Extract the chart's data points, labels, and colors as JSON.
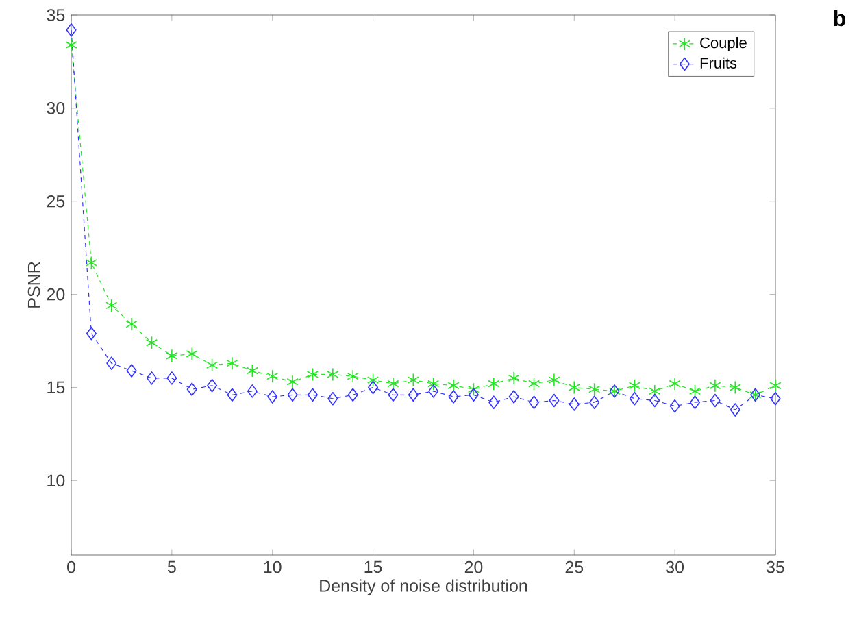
{
  "chart_data": {
    "type": "line",
    "xlabel": "Density of noise distribution",
    "ylabel": "PSNR",
    "x": [
      0,
      1,
      2,
      3,
      4,
      5,
      6,
      7,
      8,
      9,
      10,
      11,
      12,
      13,
      14,
      15,
      16,
      17,
      18,
      19,
      20,
      21,
      22,
      23,
      24,
      25,
      26,
      27,
      28,
      29,
      30,
      31,
      32,
      33,
      34,
      35
    ],
    "series": [
      {
        "name": "Couple",
        "color": "#22e622",
        "marker": "cross",
        "values": [
          33.4,
          21.7,
          19.4,
          18.4,
          17.4,
          16.7,
          16.8,
          16.2,
          16.3,
          15.9,
          15.6,
          15.3,
          15.7,
          15.7,
          15.6,
          15.4,
          15.2,
          15.4,
          15.2,
          15.1,
          14.9,
          15.2,
          15.5,
          15.2,
          15.4,
          15.0,
          14.9,
          14.8,
          15.1,
          14.8,
          15.2,
          14.8,
          15.1,
          15.0,
          14.6,
          15.1
        ]
      },
      {
        "name": "Fruits",
        "color": "#3333ff",
        "marker": "diamond",
        "values": [
          34.2,
          17.9,
          16.3,
          15.9,
          15.5,
          15.5,
          14.9,
          15.1,
          14.6,
          14.8,
          14.5,
          14.6,
          14.6,
          14.4,
          14.6,
          15.0,
          14.6,
          14.6,
          14.8,
          14.5,
          14.6,
          14.2,
          14.5,
          14.2,
          14.3,
          14.1,
          14.2,
          14.8,
          14.4,
          14.3,
          14.0,
          14.2,
          14.3,
          13.8,
          14.6,
          14.4
        ]
      }
    ],
    "line_style": "dashed",
    "xlim": [
      0,
      35
    ],
    "ylim": [
      6,
      35
    ],
    "xticks": [
      0,
      5,
      10,
      15,
      20,
      25,
      30,
      35
    ],
    "yticks": [
      10,
      15,
      20,
      25,
      30,
      35
    ],
    "grid": false,
    "legend": "top right",
    "annotations": [
      "**b**"
    ]
  }
}
